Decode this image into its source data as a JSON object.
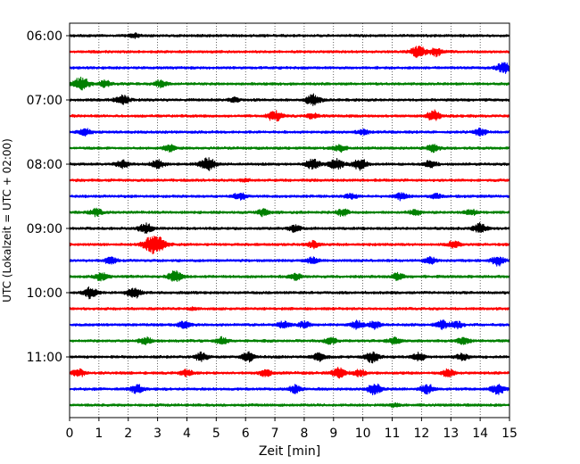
{
  "chart_data": {
    "type": "line",
    "title": "",
    "xlabel": "Zeit  [min]",
    "ylabel": "UTC (Lokalzeit = UTC + 02:00)",
    "xlim": [
      0,
      15
    ],
    "x_ticks": [
      "0",
      "1",
      "2",
      "3",
      "4",
      "5",
      "6",
      "7",
      "8",
      "9",
      "10",
      "11",
      "12",
      "13",
      "14",
      "15"
    ],
    "y_ticks": [
      "06:00",
      "07:00",
      "08:00",
      "09:00",
      "10:00",
      "11:00"
    ],
    "trace_interval_min": 15,
    "trace_start": "06:00",
    "trace_count": 24,
    "color_cycle": [
      "#000000",
      "#ff0000",
      "#0000ff",
      "#008000"
    ],
    "grid": "vertical dotted",
    "events": [
      [
        [
          2.2,
          0.35
        ]
      ],
      [
        [
          11.9,
          0.9
        ],
        [
          12.5,
          0.6
        ]
      ],
      [
        [
          14.8,
          0.8
        ]
      ],
      [
        [
          0.4,
          1.0
        ],
        [
          1.2,
          0.5
        ],
        [
          3.1,
          0.5
        ]
      ],
      [
        [
          1.8,
          0.7
        ],
        [
          8.3,
          0.8
        ],
        [
          5.6,
          0.3
        ]
      ],
      [
        [
          7.0,
          0.8
        ],
        [
          12.4,
          0.8
        ],
        [
          8.3,
          0.4
        ]
      ],
      [
        [
          0.5,
          0.5
        ],
        [
          14.0,
          0.5
        ],
        [
          10.0,
          0.4
        ]
      ],
      [
        [
          3.4,
          0.5
        ],
        [
          9.2,
          0.5
        ],
        [
          12.4,
          0.5
        ]
      ],
      [
        [
          1.8,
          0.6
        ],
        [
          3.0,
          0.6
        ],
        [
          4.7,
          1.0
        ],
        [
          8.3,
          0.8
        ],
        [
          9.1,
          0.8
        ],
        [
          9.9,
          0.8
        ],
        [
          12.3,
          0.5
        ]
      ],
      [
        [
          6.0,
          0.2
        ]
      ],
      [
        [
          5.8,
          0.5
        ],
        [
          9.6,
          0.4
        ],
        [
          11.3,
          0.5
        ],
        [
          12.5,
          0.4
        ]
      ],
      [
        [
          0.9,
          0.5
        ],
        [
          6.6,
          0.5
        ],
        [
          9.3,
          0.5
        ],
        [
          11.8,
          0.4
        ],
        [
          13.7,
          0.4
        ]
      ],
      [
        [
          2.6,
          0.7
        ],
        [
          7.7,
          0.5
        ],
        [
          14.0,
          0.7
        ]
      ],
      [
        [
          2.9,
          1.6
        ],
        [
          8.3,
          0.5
        ],
        [
          13.1,
          0.5
        ]
      ],
      [
        [
          1.4,
          0.5
        ],
        [
          8.3,
          0.5
        ],
        [
          12.3,
          0.5
        ],
        [
          14.6,
          0.7
        ]
      ],
      [
        [
          1.1,
          0.6
        ],
        [
          3.6,
          0.8
        ],
        [
          7.7,
          0.5
        ],
        [
          11.2,
          0.5
        ]
      ],
      [
        [
          0.7,
          0.8
        ],
        [
          2.2,
          0.8
        ]
      ],
      [
        [
          4.2,
          0.15
        ]
      ],
      [
        [
          3.9,
          0.5
        ],
        [
          7.3,
          0.5
        ],
        [
          8.0,
          0.5
        ],
        [
          9.8,
          0.6
        ],
        [
          10.4,
          0.6
        ],
        [
          12.7,
          0.6
        ],
        [
          13.2,
          0.5
        ]
      ],
      [
        [
          2.6,
          0.5
        ],
        [
          5.2,
          0.5
        ],
        [
          8.9,
          0.5
        ],
        [
          11.1,
          0.5
        ],
        [
          13.4,
          0.5
        ]
      ],
      [
        [
          4.5,
          0.6
        ],
        [
          6.1,
          0.7
        ],
        [
          8.5,
          0.6
        ],
        [
          10.3,
          0.8
        ],
        [
          11.9,
          0.6
        ],
        [
          13.4,
          0.5
        ]
      ],
      [
        [
          0.3,
          0.6
        ],
        [
          4.0,
          0.5
        ],
        [
          6.7,
          0.5
        ],
        [
          9.2,
          0.8
        ],
        [
          9.9,
          0.5
        ],
        [
          12.9,
          0.6
        ]
      ],
      [
        [
          2.3,
          0.6
        ],
        [
          7.7,
          0.6
        ],
        [
          10.4,
          0.8
        ],
        [
          12.2,
          0.7
        ],
        [
          14.6,
          0.7
        ]
      ],
      [
        [
          11.1,
          0.2
        ]
      ]
    ]
  }
}
